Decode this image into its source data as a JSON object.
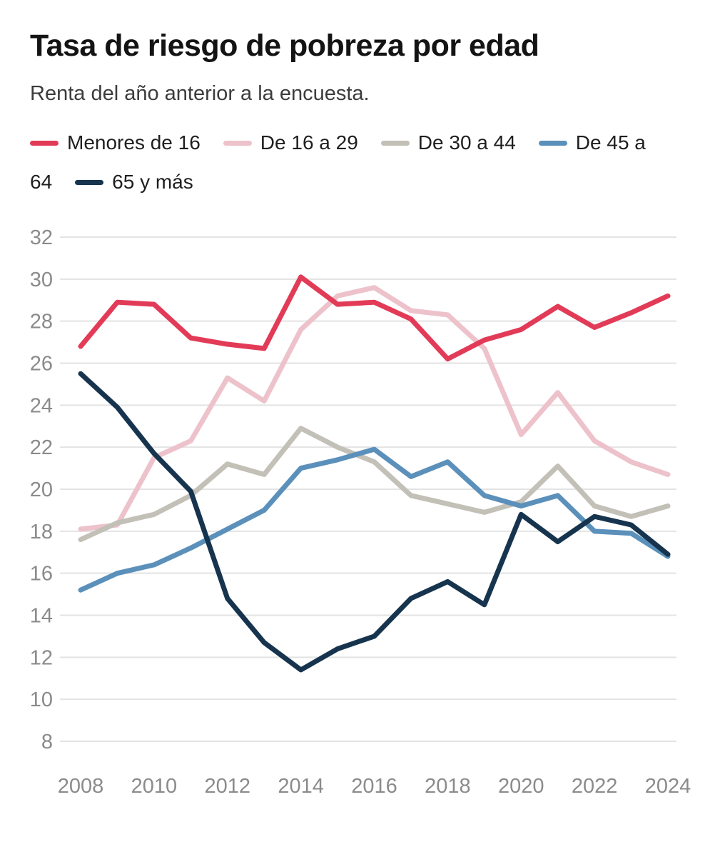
{
  "header": {
    "title": "Tasa de riesgo de pobreza por edad",
    "subtitle": "Renta del año anterior a la encuesta."
  },
  "legend": {
    "items": [
      {
        "label": "Menores de 16",
        "color": "#e23b58"
      },
      {
        "label": "De 16 a 29",
        "color": "#edc2cb"
      },
      {
        "label": "De 30 a 44",
        "color": "#c2c0b7"
      },
      {
        "label": "De 45 a 64",
        "color": "#5b90bb"
      },
      {
        "label": "65 y más",
        "color": "#17344e"
      }
    ]
  },
  "chart_data": {
    "type": "line",
    "title": "Tasa de riesgo de pobreza por edad",
    "subtitle": "Renta del año anterior a la encuesta.",
    "x": [
      2008,
      2009,
      2010,
      2011,
      2012,
      2013,
      2014,
      2015,
      2016,
      2017,
      2018,
      2019,
      2020,
      2021,
      2022,
      2023,
      2024
    ],
    "series": [
      {
        "name": "Menores de 16",
        "color": "#e23b58",
        "values": [
          26.8,
          28.9,
          28.8,
          27.2,
          26.9,
          26.7,
          30.1,
          28.8,
          28.9,
          28.1,
          26.2,
          27.1,
          27.6,
          28.7,
          27.7,
          28.4,
          29.2
        ]
      },
      {
        "name": "De 16 a 29",
        "color": "#edc2cb",
        "values": [
          18.1,
          18.3,
          21.5,
          22.3,
          25.3,
          24.2,
          27.6,
          29.2,
          29.6,
          28.5,
          28.3,
          26.7,
          22.6,
          24.6,
          22.3,
          21.3,
          20.7
        ]
      },
      {
        "name": "De 30 a 44",
        "color": "#c2c0b7",
        "values": [
          17.6,
          18.4,
          18.8,
          19.7,
          21.2,
          20.7,
          22.9,
          22.0,
          21.3,
          19.7,
          19.3,
          18.9,
          19.4,
          21.1,
          19.2,
          18.7,
          19.2
        ]
      },
      {
        "name": "De 45 a 64",
        "color": "#5b90bb",
        "values": [
          15.2,
          16.0,
          16.4,
          17.2,
          18.1,
          19.0,
          21.0,
          21.4,
          21.9,
          20.6,
          21.3,
          19.7,
          19.2,
          19.7,
          18.0,
          17.9,
          16.8
        ]
      },
      {
        "name": "65 y más",
        "color": "#17344e",
        "values": [
          25.5,
          23.9,
          21.7,
          19.9,
          14.8,
          12.7,
          11.4,
          12.4,
          13.0,
          14.8,
          15.6,
          14.5,
          18.8,
          17.5,
          18.7,
          18.3,
          16.9
        ]
      }
    ],
    "ylim": [
      8,
      32
    ],
    "yticks": [
      8,
      10,
      12,
      14,
      16,
      18,
      20,
      22,
      24,
      26,
      28,
      30,
      32
    ],
    "xticks": [
      2008,
      2010,
      2012,
      2014,
      2016,
      2018,
      2020,
      2022,
      2024
    ],
    "grid": "horizontal",
    "legend_position": "top",
    "colors": {
      "grid": "#e3e3e3",
      "axis_text": "#8b8b8b"
    }
  }
}
